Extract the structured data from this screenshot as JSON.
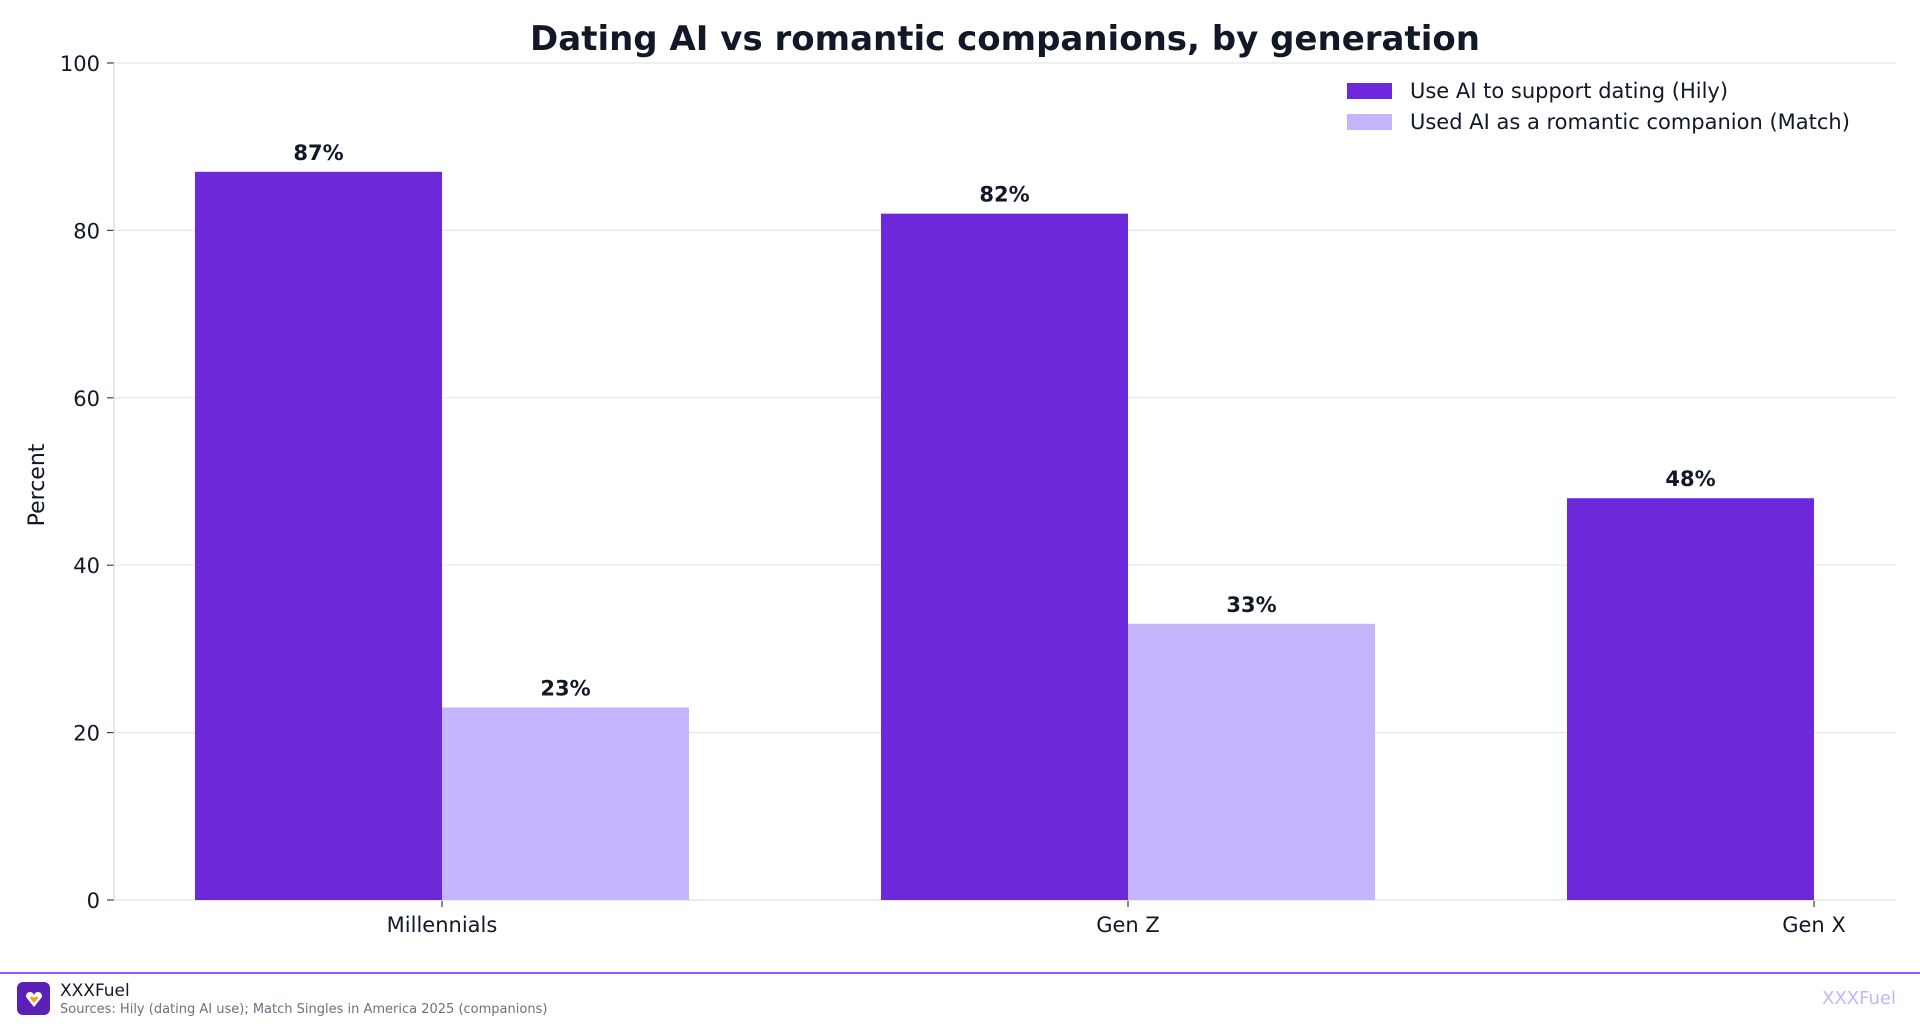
{
  "chart_data": {
    "type": "bar",
    "title": "Dating AI vs romantic companions, by generation",
    "xlabel": "",
    "ylabel": "Percent",
    "ylim": [
      0,
      100
    ],
    "yticks": [
      "0",
      "20",
      "40",
      "60",
      "80",
      "100"
    ],
    "grid": true,
    "legend_position": "top-right",
    "categories": [
      "Millennials",
      "Gen Z",
      "Gen X"
    ],
    "series": [
      {
        "name": "Use AI to support dating (Hily)",
        "color": "#6d28d9",
        "values": [
          87,
          82,
          48
        ],
        "labels": [
          "87%",
          "82%",
          "48%"
        ]
      },
      {
        "name": "Used AI as a romantic companion (Match)",
        "color": "#c4b5fd",
        "values": [
          23,
          33,
          null
        ],
        "labels": [
          "23%",
          "33%",
          ""
        ]
      }
    ]
  },
  "footer": {
    "brand": "XXXFuel",
    "sources": "Sources: Hily (dating AI use); Match Singles in America 2025 (companions)",
    "watermark": "XXXFuel",
    "logo_icon": "heart-shield-icon"
  }
}
